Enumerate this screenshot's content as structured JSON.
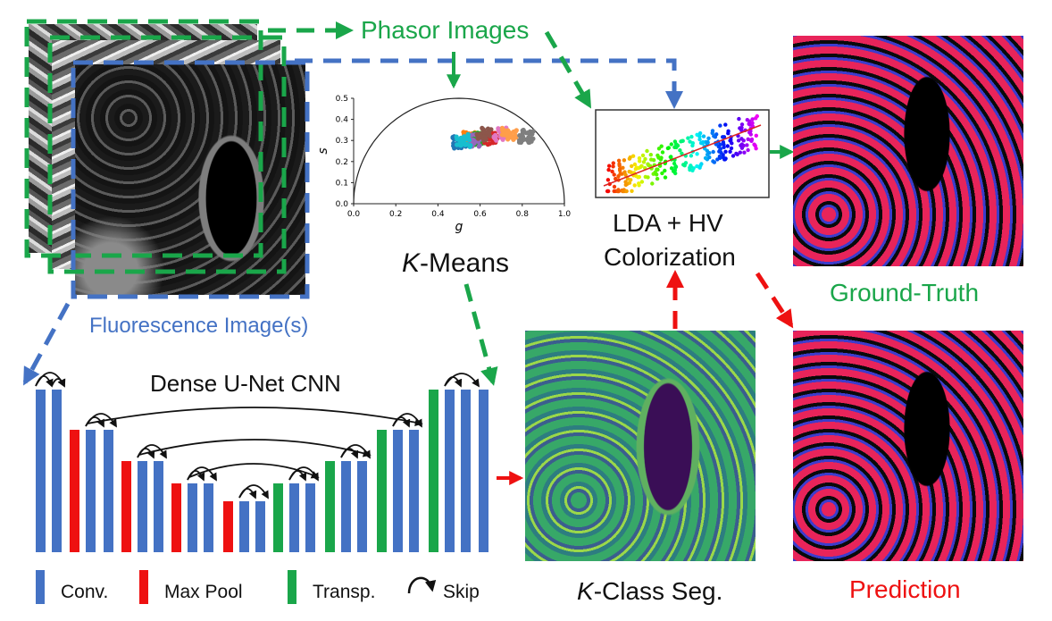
{
  "labels": {
    "phasor_images": "Phasor Images",
    "fluorescence": "Fluorescence Image(s)",
    "kmeans_k": "K",
    "kmeans_rest": "-Means",
    "lda_line1": "LDA + HV",
    "lda_line2": "Colorization",
    "ground_truth": "Ground-Truth",
    "prediction": "Prediction",
    "kclass_k": "K",
    "kclass_rest": "-Class Seg.",
    "unet_title": "Dense U-Net CNN"
  },
  "legend": {
    "conv": "Conv.",
    "maxpool": "Max Pool",
    "transp": "Transp.",
    "skip": "Skip"
  },
  "colors": {
    "conv": "#4472c4",
    "maxpool": "#ee1111",
    "transp": "#1aa64a",
    "green_arrow": "#1aa64a",
    "blue_arrow": "#4472c4",
    "red_arrow": "#ee1111"
  },
  "chart_data": {
    "type": "scatter",
    "title": "",
    "xlabel": "g",
    "ylabel": "s",
    "xlim": [
      0.0,
      1.0
    ],
    "ylim": [
      0.0,
      0.5
    ],
    "xticks": [
      "0.0",
      "0.2",
      "0.4",
      "0.6",
      "0.8",
      "1.0"
    ],
    "yticks": [
      "0.0",
      "0.1",
      "0.2",
      "0.3",
      "0.4",
      "0.5"
    ],
    "semicircle": true,
    "clusters": [
      {
        "color": "#1f77b4",
        "cx": 0.5,
        "cy": 0.29
      },
      {
        "color": "#ff7f0e",
        "cx": 0.55,
        "cy": 0.31
      },
      {
        "color": "#2ca02c",
        "cx": 0.6,
        "cy": 0.31
      },
      {
        "color": "#d62728",
        "cx": 0.65,
        "cy": 0.31
      },
      {
        "color": "#9467bd",
        "cx": 0.57,
        "cy": 0.3
      },
      {
        "color": "#8c564b",
        "cx": 0.62,
        "cy": 0.33
      },
      {
        "color": "#e377c2",
        "cx": 0.7,
        "cy": 0.33
      },
      {
        "color": "#ff9e4a",
        "cx": 0.74,
        "cy": 0.33
      },
      {
        "color": "#7f7f7f",
        "cx": 0.82,
        "cy": 0.32
      },
      {
        "color": "#17becf",
        "cx": 0.52,
        "cy": 0.3
      }
    ]
  }
}
